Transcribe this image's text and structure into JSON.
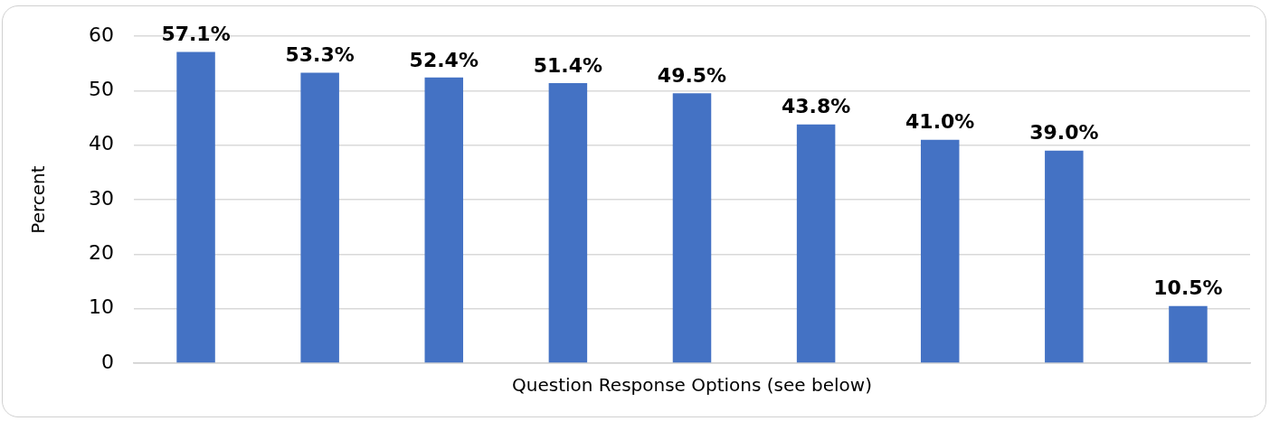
{
  "chart_data": {
    "type": "bar",
    "xlabel": "Question Response Options (see below)",
    "ylabel": "Percent",
    "categories": [
      null,
      null,
      null,
      null,
      null,
      null,
      null,
      null,
      null
    ],
    "values": [
      57.1,
      53.3,
      52.4,
      51.4,
      49.5,
      43.8,
      41.0,
      39.0,
      10.5
    ],
    "value_labels": [
      "57.1%",
      "53.3%",
      "52.4%",
      "51.4%",
      "49.5%",
      "43.8%",
      "41.0%",
      "39.0%",
      "10.5%"
    ],
    "color": "#4472c4",
    "ylim": [
      0,
      60
    ],
    "yticks": [
      0,
      10,
      20,
      30,
      40,
      50,
      60
    ],
    "grid": "y",
    "legend": false,
    "tick_labels": "y"
  }
}
